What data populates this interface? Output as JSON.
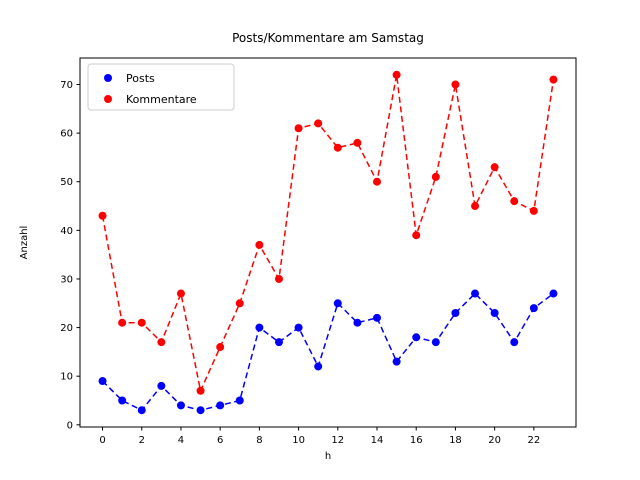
{
  "chart_data": {
    "type": "line",
    "title": "Posts/Kommentare am Samstag",
    "xlabel": "h",
    "ylabel": "Anzahl",
    "x": [
      0,
      1,
      2,
      3,
      4,
      5,
      6,
      7,
      8,
      9,
      10,
      11,
      12,
      13,
      14,
      15,
      16,
      17,
      18,
      19,
      20,
      21,
      22,
      23
    ],
    "series": [
      {
        "name": "Posts",
        "color": "#0000ff",
        "values": [
          9,
          5,
          3,
          8,
          4,
          3,
          4,
          5,
          20,
          17,
          20,
          12,
          25,
          21,
          22,
          13,
          18,
          17,
          23,
          27,
          23,
          17,
          24,
          27
        ]
      },
      {
        "name": "Kommentare",
        "color": "#ff0000",
        "values": [
          43,
          21,
          21,
          17,
          27,
          7,
          16,
          25,
          37,
          30,
          61,
          62,
          57,
          58,
          50,
          72,
          39,
          51,
          70,
          45,
          53,
          46,
          44,
          71
        ]
      }
    ],
    "xticks": [
      0,
      2,
      4,
      6,
      8,
      10,
      12,
      14,
      16,
      18,
      20,
      22
    ],
    "yticks": [
      0,
      10,
      20,
      30,
      40,
      50,
      60,
      70
    ],
    "xlim": [
      -1.15,
      24.15
    ],
    "ylim": [
      -0.45,
      75.45
    ],
    "line_style": "dashed",
    "marker": "circle",
    "legend_position": "upper-left",
    "grid": false,
    "colors": {
      "posts": "#0000ff",
      "kommentare": "#ff0000",
      "axis": "#000000",
      "legend_border": "#cccccc",
      "background": "#ffffff"
    }
  }
}
